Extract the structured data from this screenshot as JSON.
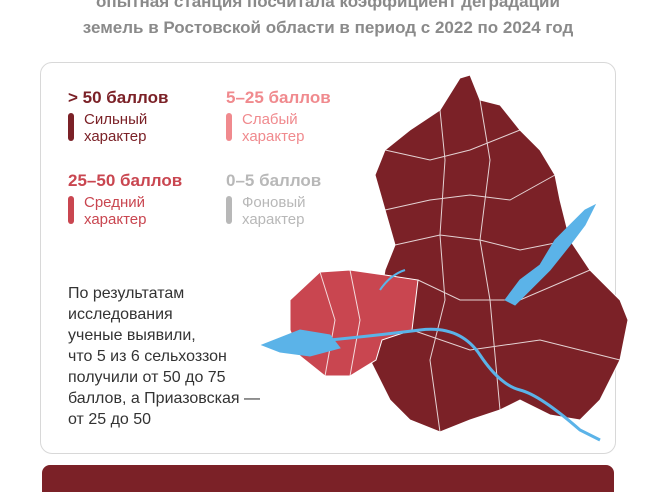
{
  "header": {
    "lines": [
      "опытная станция посчитала коэффициент деградации",
      "земель в Ростовской области в период с 2022 по 2024 год"
    ]
  },
  "legend": [
    {
      "range": "> 50 баллов",
      "description": "Сильный характер",
      "color": "#7b2127"
    },
    {
      "range": "5–25 баллов",
      "description": "Слабый характер",
      "color": "#f08a8e"
    },
    {
      "range": "25–50 баллов",
      "description": "Средний характер",
      "color": "#c94650"
    },
    {
      "range": "0–5 баллов",
      "description": "Фоновый характер",
      "color": "#b8b8b8"
    }
  ],
  "findings": {
    "lines": [
      "По результатам",
      "исследования",
      "ученые выявили,",
      "что 5 из 6 сельхоззон",
      "получили от 50 до 75",
      "баллов, а Приазовская —",
      "от 25 до 50"
    ]
  }
}
